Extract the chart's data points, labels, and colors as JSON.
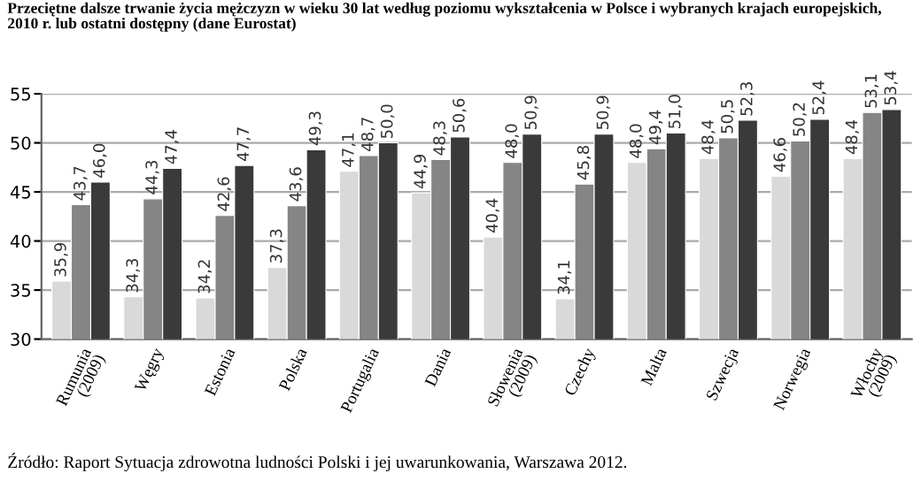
{
  "chart_data": {
    "type": "bar",
    "title": "Przeciętne dalsze trwanie życia mężczyzn w wieku 30 lat według poziomu wykształcenia w Polsce i wybranych krajach europejskich,\n2010 r. lub ostatni dostępny (dane Eurostat)",
    "categories": [
      "Rumunia\n(2009)",
      "Węgry",
      "Estonia",
      "Polska",
      "Portugalia",
      "Dania",
      "Słowenia\n(2009)",
      "Czechy",
      "Malta",
      "Szwecja",
      "Norwegia",
      "Włochy\n(2009)"
    ],
    "series": [
      {
        "color": "#d9d9d9",
        "values": [
          35.9,
          34.3,
          34.2,
          37.3,
          47.1,
          44.9,
          40.4,
          34.1,
          48.0,
          48.4,
          46.6,
          48.4
        ],
        "value_labels": [
          "35,9",
          "34,3",
          "34,2",
          "37,3",
          "47,1",
          "44,9",
          "40,4",
          "34,1",
          "48,0",
          "48,4",
          "46,6",
          "48,4"
        ]
      },
      {
        "color": "#858585",
        "values": [
          43.7,
          44.3,
          42.6,
          43.6,
          48.7,
          48.3,
          48.0,
          45.8,
          49.4,
          50.5,
          50.2,
          53.1
        ],
        "value_labels": [
          "43,7",
          "44,3",
          "42,6",
          "43,6",
          "48,7",
          "48,3",
          "48,0",
          "45,8",
          "49,4",
          "50,5",
          "50,2",
          "53,1"
        ]
      },
      {
        "color": "#3a3a3a",
        "values": [
          46.0,
          47.4,
          47.7,
          49.3,
          50.0,
          50.6,
          50.9,
          50.9,
          51.0,
          52.3,
          52.4,
          53.4
        ],
        "value_labels": [
          "46,0",
          "47,4",
          "47,7",
          "49,3",
          "50,0",
          "50,6",
          "50,9",
          "50,9",
          "51,0",
          "52,3",
          "52,4",
          "53,4"
        ]
      }
    ],
    "ylim": [
      30,
      55
    ],
    "yticks": [
      30,
      35,
      40,
      45,
      50,
      55
    ],
    "grid": "y",
    "legend": false,
    "annotations": [
      "Źródło: Raport Sytuacja zdrowotna ludności Polski i jej uwarunkowania, Warszawa 2012."
    ]
  }
}
